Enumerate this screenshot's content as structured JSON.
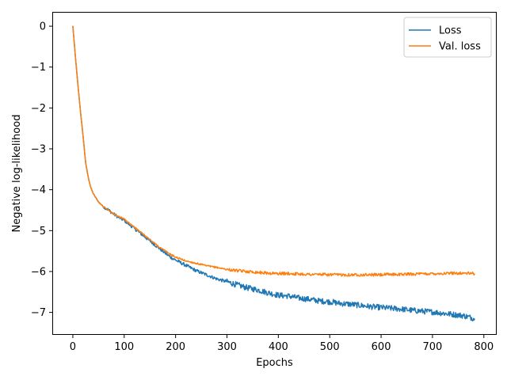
{
  "chart_data": {
    "type": "line",
    "xlabel": "Epochs",
    "ylabel": "Negative log-likelihood",
    "xlim": [
      -40,
      825
    ],
    "ylim": [
      -7.55,
      0.35
    ],
    "xticks": [
      0,
      100,
      200,
      300,
      400,
      500,
      600,
      700,
      800
    ],
    "yticks": [
      0,
      -1,
      -2,
      -3,
      -4,
      -5,
      -6,
      -7
    ],
    "ytick_labels": [
      "0",
      "−1",
      "−2",
      "−3",
      "−4",
      "−5",
      "−6",
      "−7"
    ],
    "legend_position": "top-right",
    "grid": false,
    "series": [
      {
        "name": "Loss",
        "color": "#1f77b4",
        "x": [
          0,
          5,
          10,
          15,
          20,
          25,
          30,
          35,
          40,
          45,
          50,
          60,
          70,
          80,
          90,
          100,
          110,
          120,
          130,
          140,
          150,
          160,
          170,
          180,
          190,
          200,
          220,
          240,
          260,
          280,
          300,
          320,
          340,
          360,
          380,
          400,
          420,
          440,
          460,
          480,
          500,
          520,
          540,
          560,
          580,
          600,
          620,
          640,
          660,
          680,
          700,
          720,
          740,
          760,
          782
        ],
        "values": [
          0.0,
          -0.75,
          -1.45,
          -2.1,
          -2.7,
          -3.35,
          -3.7,
          -3.95,
          -4.1,
          -4.2,
          -4.3,
          -4.42,
          -4.5,
          -4.6,
          -4.68,
          -4.75,
          -4.85,
          -4.95,
          -5.05,
          -5.15,
          -5.25,
          -5.35,
          -5.45,
          -5.55,
          -5.65,
          -5.72,
          -5.85,
          -5.98,
          -6.08,
          -6.18,
          -6.25,
          -6.33,
          -6.4,
          -6.45,
          -6.52,
          -6.58,
          -6.6,
          -6.65,
          -6.68,
          -6.72,
          -6.74,
          -6.78,
          -6.8,
          -6.83,
          -6.86,
          -6.88,
          -6.9,
          -6.92,
          -6.95,
          -6.97,
          -6.99,
          -7.02,
          -7.05,
          -7.08,
          -7.15
        ]
      },
      {
        "name": "Val. loss",
        "color": "#ff7f0e",
        "x": [
          0,
          5,
          10,
          15,
          20,
          25,
          30,
          35,
          40,
          45,
          50,
          60,
          70,
          80,
          90,
          100,
          110,
          120,
          130,
          140,
          150,
          160,
          170,
          180,
          190,
          200,
          220,
          240,
          260,
          280,
          300,
          320,
          340,
          360,
          380,
          400,
          420,
          440,
          460,
          480,
          500,
          520,
          540,
          560,
          580,
          600,
          620,
          640,
          660,
          680,
          700,
          720,
          740,
          760,
          782
        ],
        "values": [
          0.0,
          -0.75,
          -1.45,
          -2.1,
          -2.7,
          -3.35,
          -3.7,
          -3.95,
          -4.1,
          -4.2,
          -4.3,
          -4.42,
          -4.5,
          -4.6,
          -4.66,
          -4.72,
          -4.82,
          -4.92,
          -5.02,
          -5.12,
          -5.22,
          -5.32,
          -5.42,
          -5.5,
          -5.58,
          -5.65,
          -5.74,
          -5.8,
          -5.86,
          -5.9,
          -5.95,
          -5.98,
          -6.0,
          -6.02,
          -6.04,
          -6.05,
          -6.05,
          -6.06,
          -6.07,
          -6.07,
          -6.08,
          -6.08,
          -6.08,
          -6.08,
          -6.08,
          -6.08,
          -6.07,
          -6.07,
          -6.06,
          -6.06,
          -6.05,
          -6.05,
          -6.04,
          -6.04,
          -6.05
        ]
      }
    ]
  }
}
